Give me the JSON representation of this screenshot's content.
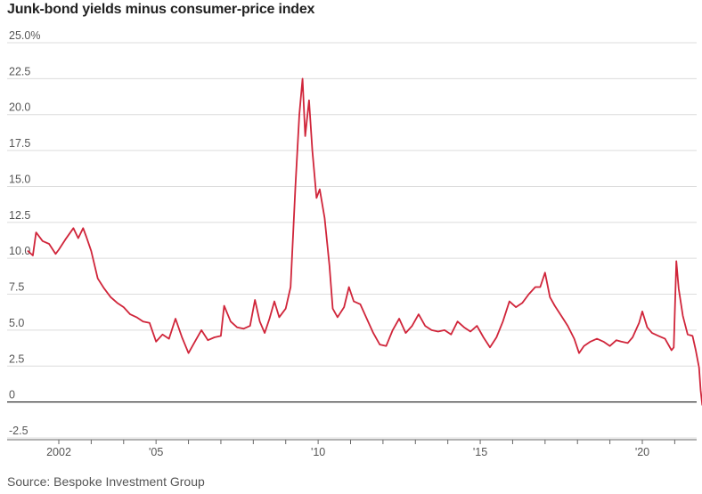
{
  "title": "Junk-bond yields minus consumer-price index",
  "source": "Source: Bespoke Investment Group",
  "chart_data": {
    "type": "line",
    "title": "Junk-bond yields minus consumer-price index",
    "xlabel": "",
    "ylabel": "",
    "ylim": [
      -2.5,
      25
    ],
    "xlim": [
      2001.0,
      2021.9
    ],
    "yticks": [
      25,
      22.5,
      20,
      17.5,
      15,
      12.5,
      10,
      7.5,
      5,
      2.5,
      0,
      -2.5
    ],
    "ytick_labels": [
      "25.0%",
      "22.5",
      "20.0",
      "17.5",
      "15.0",
      "12.5",
      "10.0",
      "7.5",
      "5.0",
      "2.5",
      "0",
      "-2.5"
    ],
    "xticks": [
      2002,
      2005,
      2010,
      2015,
      2020
    ],
    "xtick_labels": [
      "2002",
      "'05",
      "'10",
      "'15",
      "'20"
    ],
    "grid": true,
    "line_color": "#d0253a",
    "series": [
      {
        "values": [
          [
            2001.05,
            10.5
          ],
          [
            2001.2,
            10.2
          ],
          [
            2001.3,
            11.8
          ],
          [
            2001.5,
            11.2
          ],
          [
            2001.7,
            11.0
          ],
          [
            2001.9,
            10.3
          ],
          [
            2002.0,
            10.6
          ],
          [
            2002.2,
            11.3
          ],
          [
            2002.45,
            12.1
          ],
          [
            2002.6,
            11.4
          ],
          [
            2002.75,
            12.1
          ],
          [
            2002.85,
            11.5
          ],
          [
            2003.0,
            10.5
          ],
          [
            2003.2,
            8.6
          ],
          [
            2003.4,
            7.9
          ],
          [
            2003.6,
            7.3
          ],
          [
            2003.8,
            6.9
          ],
          [
            2004.0,
            6.6
          ],
          [
            2004.2,
            6.1
          ],
          [
            2004.4,
            5.9
          ],
          [
            2004.6,
            5.6
          ],
          [
            2004.8,
            5.5
          ],
          [
            2005.0,
            4.2
          ],
          [
            2005.2,
            4.7
          ],
          [
            2005.4,
            4.4
          ],
          [
            2005.6,
            5.8
          ],
          [
            2005.8,
            4.5
          ],
          [
            2006.0,
            3.4
          ],
          [
            2006.2,
            4.2
          ],
          [
            2006.4,
            5.0
          ],
          [
            2006.6,
            4.3
          ],
          [
            2006.8,
            4.5
          ],
          [
            2007.0,
            4.6
          ],
          [
            2007.1,
            6.7
          ],
          [
            2007.3,
            5.6
          ],
          [
            2007.5,
            5.2
          ],
          [
            2007.7,
            5.1
          ],
          [
            2007.9,
            5.3
          ],
          [
            2008.05,
            7.1
          ],
          [
            2008.2,
            5.6
          ],
          [
            2008.35,
            4.8
          ],
          [
            2008.5,
            5.8
          ],
          [
            2008.65,
            7.0
          ],
          [
            2008.8,
            5.9
          ],
          [
            2009.0,
            6.5
          ],
          [
            2009.15,
            8.0
          ],
          [
            2009.3,
            15.0
          ],
          [
            2009.42,
            20.0
          ],
          [
            2009.52,
            22.5
          ],
          [
            2009.6,
            18.5
          ],
          [
            2009.72,
            21.0
          ],
          [
            2009.82,
            17.5
          ],
          [
            2009.95,
            14.2
          ],
          [
            2010.05,
            14.8
          ],
          [
            2010.2,
            12.8
          ],
          [
            2010.35,
            9.5
          ],
          [
            2010.45,
            6.5
          ],
          [
            2010.6,
            5.9
          ],
          [
            2010.8,
            6.6
          ],
          [
            2010.95,
            8.0
          ],
          [
            2011.1,
            7.0
          ],
          [
            2011.3,
            6.8
          ],
          [
            2011.5,
            5.8
          ],
          [
            2011.7,
            4.8
          ],
          [
            2011.9,
            4.0
          ],
          [
            2012.1,
            3.9
          ],
          [
            2012.3,
            5.0
          ],
          [
            2012.5,
            5.8
          ],
          [
            2012.7,
            4.8
          ],
          [
            2012.9,
            5.3
          ],
          [
            2013.1,
            6.1
          ],
          [
            2013.3,
            5.3
          ],
          [
            2013.5,
            5.0
          ],
          [
            2013.7,
            4.9
          ],
          [
            2013.9,
            5.0
          ],
          [
            2014.1,
            4.7
          ],
          [
            2014.3,
            5.6
          ],
          [
            2014.5,
            5.2
          ],
          [
            2014.7,
            4.9
          ],
          [
            2014.9,
            5.3
          ],
          [
            2015.1,
            4.5
          ],
          [
            2015.3,
            3.8
          ],
          [
            2015.5,
            4.5
          ],
          [
            2015.7,
            5.6
          ],
          [
            2015.9,
            7.0
          ],
          [
            2016.1,
            6.6
          ],
          [
            2016.3,
            6.9
          ],
          [
            2016.5,
            7.5
          ],
          [
            2016.7,
            8.0
          ],
          [
            2016.85,
            8.0
          ],
          [
            2017.0,
            9.0
          ],
          [
            2017.15,
            7.3
          ],
          [
            2017.3,
            6.7
          ],
          [
            2017.5,
            6.0
          ],
          [
            2017.7,
            5.3
          ],
          [
            2017.9,
            4.4
          ],
          [
            2018.05,
            3.4
          ],
          [
            2018.2,
            3.9
          ],
          [
            2018.4,
            4.2
          ],
          [
            2018.6,
            4.4
          ],
          [
            2018.8,
            4.2
          ],
          [
            2019.0,
            3.9
          ],
          [
            2019.2,
            4.3
          ],
          [
            2019.35,
            4.2
          ],
          [
            2019.55,
            4.1
          ],
          [
            2019.7,
            4.5
          ],
          [
            2019.9,
            5.5
          ],
          [
            2020.0,
            6.3
          ],
          [
            2020.15,
            5.2
          ],
          [
            2020.3,
            4.8
          ],
          [
            2020.5,
            4.6
          ],
          [
            2020.7,
            4.4
          ],
          [
            2020.9,
            3.6
          ],
          [
            2020.97,
            3.8
          ],
          [
            2021.05,
            9.8
          ],
          [
            2021.12,
            7.9
          ],
          [
            2021.25,
            6.0
          ],
          [
            2021.4,
            4.7
          ],
          [
            2021.55,
            4.6
          ],
          [
            2021.65,
            3.6
          ],
          [
            2021.75,
            2.4
          ],
          [
            2021.8,
            0.8
          ],
          [
            2021.85,
            -0.2
          ]
        ]
      }
    ]
  }
}
